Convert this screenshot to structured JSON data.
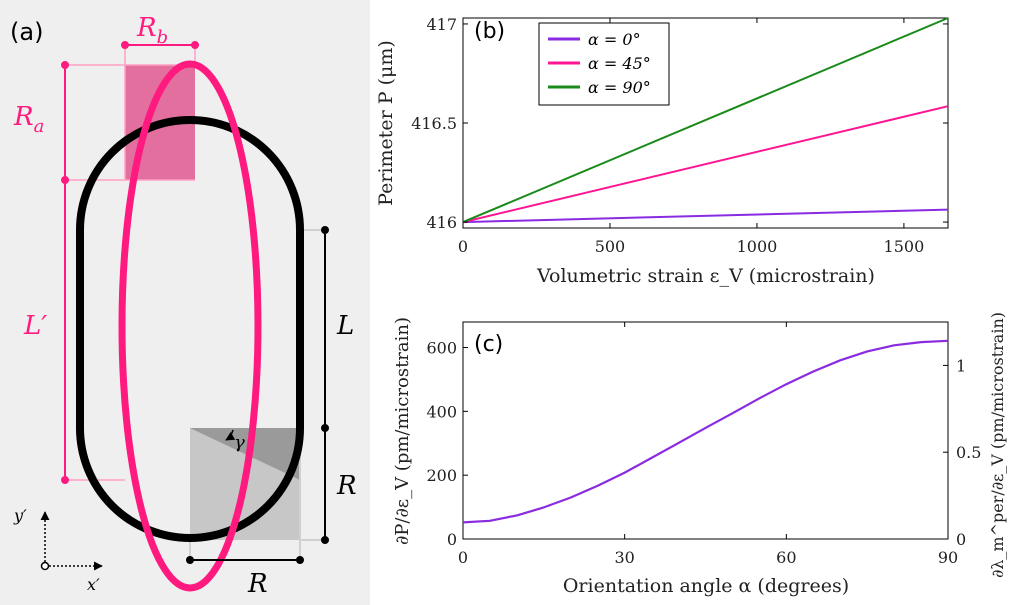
{
  "colors": {
    "panel_bg": "#efefef",
    "pink": "#ff1a7f",
    "pink_fill": "#e0588f",
    "black": "#000000",
    "gray_light": "#c7c7c7",
    "gray_dark": "#9a9a9a",
    "purple": "#8a2be2",
    "magenta": "#ff1493",
    "green": "#1a8a1a"
  },
  "panel_a": {
    "label": "(a)",
    "Ra": "R",
    "Ra_sub": "a",
    "Rb": "R",
    "Rb_sub": "b",
    "Lprime": "L′",
    "L": "L",
    "R_vert": "R",
    "R_horiz": "R",
    "gamma": "γ",
    "y_axis": "y′",
    "x_axis": "x′"
  },
  "chart_data": [
    {
      "type": "line",
      "panel_label": "(b)",
      "xlabel": "Volumetric strain ε_V  (microstrain)",
      "ylabel": "Perimeter P  (μm)",
      "xlim": [
        0,
        1650
      ],
      "ylim": [
        415.97,
        417.03
      ],
      "xticks": [
        0,
        500,
        1000,
        1500
      ],
      "yticks": [
        416,
        416.5,
        417
      ],
      "ytick_labels": [
        "416",
        "416.5",
        "417"
      ],
      "legend_position": "top-left",
      "series": [
        {
          "name": "α = 0°",
          "color": "#8a2be2",
          "x": [
            0,
            1650
          ],
          "y": [
            416.0,
            416.063
          ]
        },
        {
          "name": "α = 45°",
          "color": "#ff1493",
          "x": [
            0,
            1650
          ],
          "y": [
            416.0,
            416.585
          ]
        },
        {
          "name": "α = 90°",
          "color": "#1a8a1a",
          "x": [
            0,
            1650
          ],
          "y": [
            416.0,
            417.03
          ]
        }
      ]
    },
    {
      "type": "line",
      "panel_label": "(c)",
      "xlabel": "Orientation angle α (degrees)",
      "ylabel": "∂P/∂ε_V  (pm/microstrain)",
      "ylabel_right": "∂λ_m^per/∂ε_V  (pm/microstrain)",
      "xlim": [
        0,
        90
      ],
      "ylim": [
        0,
        680
      ],
      "ylim_right": [
        0,
        1.25
      ],
      "xticks": [
        0,
        30,
        60,
        90
      ],
      "yticks": [
        0,
        200,
        400,
        600
      ],
      "yticks_right": [
        0,
        0.5,
        1
      ],
      "ytick_labels_right": [
        "0",
        "0.5",
        "1"
      ],
      "series": [
        {
          "name": "",
          "color": "#8a2be2",
          "x": [
            0,
            5,
            10,
            15,
            20,
            25,
            30,
            35,
            40,
            45,
            50,
            55,
            60,
            65,
            70,
            75,
            80,
            85,
            90
          ],
          "y": [
            52,
            57,
            74,
            99,
            130,
            167,
            208,
            254,
            301,
            348,
            394,
            441,
            485,
            525,
            560,
            588,
            607,
            617,
            621
          ]
        }
      ]
    }
  ]
}
